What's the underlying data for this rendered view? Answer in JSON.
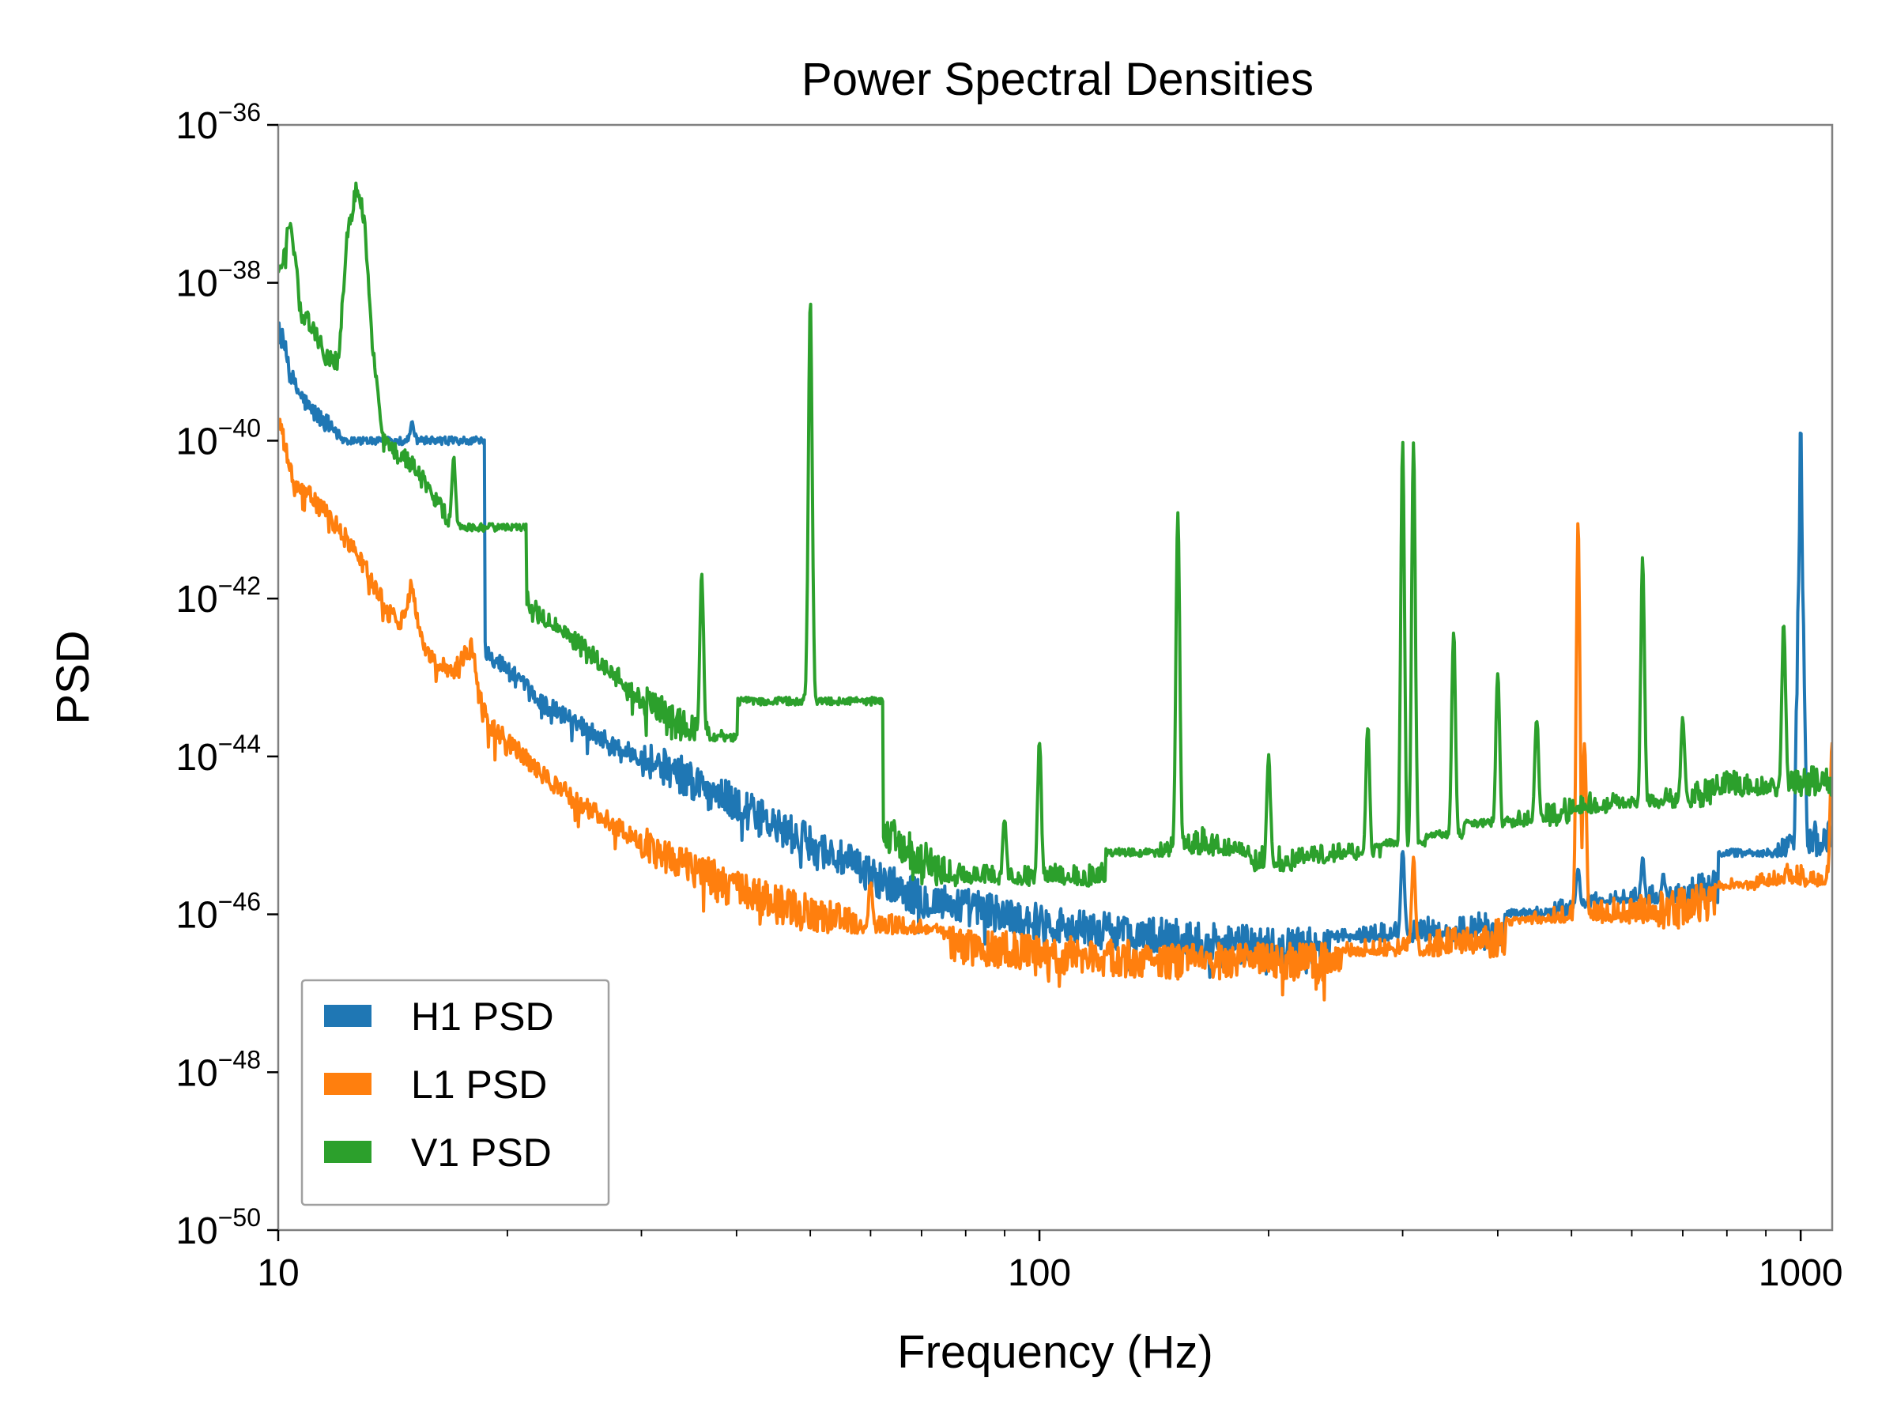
{
  "chart_data": {
    "type": "line",
    "title": "Power Spectral Densities",
    "xlabel": "Frequency (Hz)",
    "ylabel": "PSD",
    "xscale": "log",
    "yscale": "log",
    "xlim": [
      10,
      1100
    ],
    "ylim": [
      1e-50,
      1e-36
    ],
    "xticks": [
      {
        "value": 10,
        "label": "10"
      },
      {
        "value": 100,
        "label": "100"
      },
      {
        "value": 1000,
        "label": "1000"
      }
    ],
    "yticks": [
      {
        "value": -50,
        "base": "10",
        "exp": "−50"
      },
      {
        "value": -48,
        "base": "10",
        "exp": "−48"
      },
      {
        "value": -46,
        "base": "10",
        "exp": "−46"
      },
      {
        "value": -44,
        "base": "10",
        "exp": "−44"
      },
      {
        "value": -42,
        "base": "10",
        "exp": "−42"
      },
      {
        "value": -40,
        "base": "10",
        "exp": "−40"
      },
      {
        "value": -38,
        "base": "10",
        "exp": "−38"
      },
      {
        "value": -36,
        "base": "10",
        "exp": "−36"
      }
    ],
    "grid": false,
    "legend": "lower-left",
    "series": [
      {
        "name": "H1 PSD",
        "color": "#1f77b4",
        "log10_psd": [
          [
            10,
            -38.5
          ],
          [
            10.5,
            -39.3
          ],
          [
            11,
            -39.6
          ],
          [
            12,
            -39.9
          ],
          [
            13,
            -40.3
          ],
          [
            13.5,
            -40.4
          ],
          [
            14,
            -40.7
          ],
          [
            14.5,
            -41.0
          ],
          [
            15,
            -40.0
          ],
          [
            15.3,
            -41.2
          ],
          [
            15.6,
            -41.4
          ],
          [
            16,
            -41.0
          ],
          [
            16.5,
            -42.1
          ],
          [
            17,
            -42.3
          ],
          [
            18,
            -42.5
          ],
          [
            20,
            -42.9
          ],
          [
            22,
            -43.3
          ],
          [
            25,
            -43.6
          ],
          [
            28,
            -43.9
          ],
          [
            30,
            -44.0
          ],
          [
            35,
            -44.3
          ],
          [
            40,
            -44.6
          ],
          [
            45,
            -44.9
          ],
          [
            50,
            -45.1
          ],
          [
            60,
            -45.5
          ],
          [
            70,
            -45.8
          ],
          [
            80,
            -45.9
          ],
          [
            100,
            -46.1
          ],
          [
            120,
            -46.2
          ],
          [
            150,
            -46.3
          ],
          [
            200,
            -46.4
          ],
          [
            250,
            -46.4
          ],
          [
            300,
            -46.3
          ],
          [
            400,
            -46.2
          ],
          [
            500,
            -46.0
          ],
          [
            600,
            -45.9
          ],
          [
            700,
            -45.8
          ],
          [
            800,
            -45.6
          ],
          [
            900,
            -45.4
          ],
          [
            980,
            -45.2
          ],
          [
            995,
            -41.5
          ],
          [
            1000,
            -39.6
          ],
          [
            1005,
            -41.5
          ],
          [
            1020,
            -45.1
          ],
          [
            1100,
            -45.0
          ]
        ],
        "peaks": [
          [
            15,
            -39.8
          ],
          [
            1000,
            -39.6
          ],
          [
            300,
            -45.2
          ],
          [
            510,
            -45.4
          ],
          [
            620,
            -45.3
          ],
          [
            660,
            -45.5
          ],
          [
            970,
            -45.0
          ]
        ]
      },
      {
        "name": "L1 PSD",
        "color": "#ff7f0e",
        "log10_psd": [
          [
            10,
            -39.7
          ],
          [
            10.5,
            -40.6
          ],
          [
            11,
            -40.7
          ],
          [
            12,
            -41.1
          ],
          [
            13,
            -41.6
          ],
          [
            13.5,
            -41.9
          ],
          [
            14,
            -42.2
          ],
          [
            14.5,
            -42.3
          ],
          [
            15,
            -41.8
          ],
          [
            15.4,
            -42.5
          ],
          [
            16,
            -42.8
          ],
          [
            17,
            -42.9
          ],
          [
            18,
            -42.6
          ],
          [
            18.3,
            -43.2
          ],
          [
            19,
            -43.6
          ],
          [
            20,
            -43.8
          ],
          [
            22,
            -44.2
          ],
          [
            25,
            -44.6
          ],
          [
            28,
            -44.9
          ],
          [
            30,
            -45.1
          ],
          [
            35,
            -45.4
          ],
          [
            40,
            -45.7
          ],
          [
            50,
            -46.0
          ],
          [
            60,
            -46.2
          ],
          [
            80,
            -46.4
          ],
          [
            100,
            -46.5
          ],
          [
            150,
            -46.6
          ],
          [
            200,
            -46.6
          ],
          [
            250,
            -46.6
          ],
          [
            300,
            -46.5
          ],
          [
            400,
            -46.3
          ],
          [
            500,
            -46.1
          ],
          [
            600,
            -46.0
          ],
          [
            700,
            -45.9
          ],
          [
            800,
            -45.8
          ],
          [
            900,
            -45.7
          ],
          [
            1000,
            -45.6
          ],
          [
            1100,
            -45.6
          ]
        ],
        "peaks": [
          [
            510,
            -41.0
          ],
          [
            520,
            -43.8
          ],
          [
            60,
            -45.6
          ],
          [
            40,
            -45.7
          ],
          [
            310,
            -45.3
          ],
          [
            960,
            -45.4
          ],
          [
            1100,
            -43.8
          ]
        ]
      },
      {
        "name": "V1 PSD",
        "color": "#2ca02c",
        "log10_psd": [
          [
            10,
            -37.9
          ],
          [
            10.4,
            -37.2
          ],
          [
            10.7,
            -38.4
          ],
          [
            11,
            -38.5
          ],
          [
            11.5,
            -38.9
          ],
          [
            12,
            -39.0
          ],
          [
            12.3,
            -37.5
          ],
          [
            12.7,
            -36.7
          ],
          [
            13,
            -37.3
          ],
          [
            13.3,
            -38.8
          ],
          [
            13.7,
            -40.0
          ],
          [
            14,
            -40.1
          ],
          [
            15,
            -40.3
          ],
          [
            16,
            -40.7
          ],
          [
            17,
            -41.1
          ],
          [
            18,
            -41.4
          ],
          [
            20,
            -41.7
          ],
          [
            22,
            -42.2
          ],
          [
            25,
            -42.6
          ],
          [
            28,
            -43.0
          ],
          [
            30,
            -43.3
          ],
          [
            35,
            -43.7
          ],
          [
            40,
            -44.0
          ],
          [
            45,
            -44.1
          ],
          [
            48,
            -43.6
          ],
          [
            50,
            -43.3
          ],
          [
            52,
            -43.8
          ],
          [
            55,
            -44.3
          ],
          [
            60,
            -44.8
          ],
          [
            70,
            -45.3
          ],
          [
            80,
            -45.6
          ],
          [
            100,
            -45.6
          ],
          [
            120,
            -45.6
          ],
          [
            140,
            -45.4
          ],
          [
            160,
            -45.1
          ],
          [
            180,
            -45.3
          ],
          [
            200,
            -45.4
          ],
          [
            250,
            -45.3
          ],
          [
            300,
            -45.3
          ],
          [
            350,
            -45.1
          ],
          [
            400,
            -45.0
          ],
          [
            500,
            -44.7
          ],
          [
            600,
            -44.7
          ],
          [
            700,
            -44.6
          ],
          [
            800,
            -44.4
          ],
          [
            900,
            -44.5
          ],
          [
            1000,
            -44.4
          ],
          [
            1100,
            -44.3
          ]
        ],
        "peaks": [
          [
            50,
            -38.2
          ],
          [
            17,
            -40.2
          ],
          [
            36,
            -41.7
          ],
          [
            152,
            -40.9
          ],
          [
            300,
            -40.0
          ],
          [
            310,
            -40.0
          ],
          [
            270,
            -43.6
          ],
          [
            350,
            -42.4
          ],
          [
            100,
            -43.8
          ],
          [
            90,
            -44.8
          ],
          [
            200,
            -44.0
          ],
          [
            400,
            -42.9
          ],
          [
            450,
            -43.5
          ],
          [
            620,
            -41.5
          ],
          [
            700,
            -43.5
          ],
          [
            950,
            -42.3
          ],
          [
            1100,
            -44.3
          ]
        ]
      }
    ]
  }
}
